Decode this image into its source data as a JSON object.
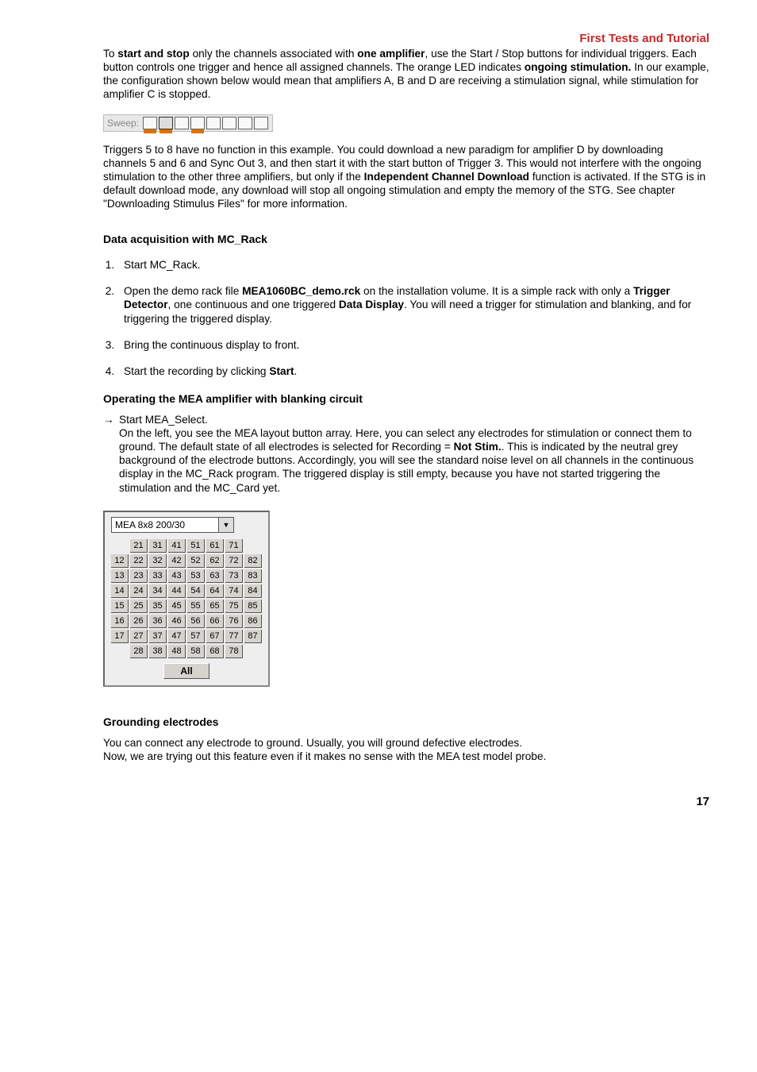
{
  "header": {
    "title": "First Tests and Tutorial"
  },
  "p1": {
    "seg1": "To ",
    "b1": "start and stop",
    "seg2": " only the channels associated with ",
    "b2": "one amplifier",
    "seg3": ", use the Start / Stop buttons for individual triggers. Each button controls one trigger and hence all assigned channels. The orange LED indicates ",
    "b3": "ongoing stimulation.",
    "seg4": " In our example, the configuration shown below would mean that amplifiers A, B and D are receiving a stimulation signal, while stimulation for amplifier C is stopped."
  },
  "sweep": {
    "label": "Sweep:",
    "leds": [
      {
        "pressed": false,
        "orange": true
      },
      {
        "pressed": true,
        "orange": true
      },
      {
        "pressed": false,
        "orange": false
      },
      {
        "pressed": false,
        "orange": true
      },
      {
        "pressed": false,
        "orange": false
      },
      {
        "pressed": false,
        "orange": false
      },
      {
        "pressed": false,
        "orange": false
      },
      {
        "pressed": false,
        "orange": false
      }
    ]
  },
  "p2": {
    "seg1": "Triggers 5 to 8 have no function in this example. You could download a new paradigm for amplifier D by downloading channels 5 and 6 and Sync Out 3, and then start it with the start button of Trigger 3. This would not interfere with the ongoing stimulation to the other three amplifiers, but only if the ",
    "b1": "Independent Channel Download",
    "seg2": " function is activated. If the STG is in default download mode, any download will stop all ongoing stimulation and empty the memory of the STG. See chapter \"Downloading Stimulus Files\" for more information."
  },
  "section1": {
    "title": "Data acquisition with MC_Rack"
  },
  "li1": {
    "text": "Start MC_Rack."
  },
  "li2": {
    "seg1": "Open the demo rack file ",
    "b1": "MEA1060BC_demo.rck",
    "seg2": " on the installation volume. It is a simple rack with only a ",
    "b2": "Trigger Detector",
    "seg3": ", one continuous and one triggered ",
    "b3": "Data Display",
    "seg4": ". You will need a trigger for stimulation and blanking, and for triggering the triggered display."
  },
  "li3": {
    "text": "Bring the continuous display to front."
  },
  "li4": {
    "seg1": "Start the recording by clicking ",
    "b1": "Start",
    "seg2": "."
  },
  "section2": {
    "title": "Operating the MEA amplifier with blanking circuit"
  },
  "arrow1": {
    "arrow": "→",
    "line1": "Start MEA_Select.",
    "seg1": "On the left, you see the MEA layout button array. Here, you can select any electrodes for stimulation or connect them to ground. The default state of all electrodes is selected for Recording = ",
    "b1": "Not Stim.",
    "seg2": ". This is indicated by the neutral grey background of the electrode buttons. Accordingly, you will see the standard noise level on all channels in the continuous display in the MC_Rack program. The triggered display is still empty, because you have not started triggering the stimulation and the MC_Card yet."
  },
  "mea": {
    "dropdown": "MEA 8x8 200/30",
    "grid": [
      [
        "",
        "21",
        "31",
        "41",
        "51",
        "61",
        "71",
        ""
      ],
      [
        "12",
        "22",
        "32",
        "42",
        "52",
        "62",
        "72",
        "82"
      ],
      [
        "13",
        "23",
        "33",
        "43",
        "53",
        "63",
        "73",
        "83"
      ],
      [
        "14",
        "24",
        "34",
        "44",
        "54",
        "64",
        "74",
        "84"
      ],
      [
        "15",
        "25",
        "35",
        "45",
        "55",
        "65",
        "75",
        "85"
      ],
      [
        "16",
        "26",
        "36",
        "46",
        "56",
        "66",
        "76",
        "86"
      ],
      [
        "17",
        "27",
        "37",
        "47",
        "57",
        "67",
        "77",
        "87"
      ],
      [
        "",
        "28",
        "38",
        "48",
        "58",
        "68",
        "78",
        ""
      ]
    ],
    "all": "All"
  },
  "section3": {
    "title": "Grounding electrodes"
  },
  "p3": {
    "line1": "You can connect any electrode to ground. Usually, you will ground defective electrodes.",
    "line2": "Now, we are trying out this feature even if it makes no sense with the MEA test model probe."
  },
  "footer": {
    "page": "17"
  }
}
